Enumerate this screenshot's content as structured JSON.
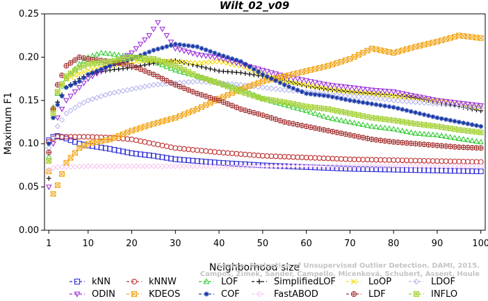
{
  "chart_data": {
    "type": "scatter",
    "title": "Wilt_02_v09",
    "xlabel": "Neighborhood size",
    "ylabel": "Maximum F1",
    "xlim": [
      0,
      101
    ],
    "ylim": [
      0,
      0.25
    ],
    "xticks": [
      1,
      10,
      20,
      30,
      40,
      50,
      60,
      70,
      80,
      90,
      100
    ],
    "yticks": [
      0.0,
      0.05,
      0.1,
      0.15,
      0.2,
      0.25
    ],
    "ytick_labels": [
      "0.00",
      "0.05",
      "0.10",
      "0.15",
      "0.20",
      "0.25"
    ],
    "legend_position": "bottom",
    "watermark": [
      "Source: Evaluation of Unsupervised Outlier Detection. DAMI, 2015.",
      "Campos, Zimek, Sander, Campello, Micenková, Schubert, Assent, Houle"
    ],
    "series": [
      {
        "name": "kNN",
        "color": "#2b2bd4",
        "marker": "square",
        "points": [
          [
            1,
            0.104
          ],
          [
            2,
            0.108
          ],
          [
            3,
            0.109
          ],
          [
            5,
            0.106
          ],
          [
            8,
            0.1
          ],
          [
            10,
            0.098
          ],
          [
            15,
            0.094
          ],
          [
            20,
            0.089
          ],
          [
            25,
            0.086
          ],
          [
            30,
            0.082
          ],
          [
            40,
            0.078
          ],
          [
            50,
            0.075
          ],
          [
            60,
            0.073
          ],
          [
            70,
            0.071
          ],
          [
            80,
            0.07
          ],
          [
            90,
            0.069
          ],
          [
            100,
            0.068
          ]
        ]
      },
      {
        "name": "kNNW",
        "color": "#c03030",
        "marker": "circle",
        "points": [
          [
            1,
            0.102
          ],
          [
            2,
            0.106
          ],
          [
            3,
            0.108
          ],
          [
            5,
            0.108
          ],
          [
            10,
            0.108
          ],
          [
            15,
            0.107
          ],
          [
            20,
            0.105
          ],
          [
            25,
            0.1
          ],
          [
            30,
            0.095
          ],
          [
            40,
            0.09
          ],
          [
            50,
            0.086
          ],
          [
            60,
            0.084
          ],
          [
            70,
            0.082
          ],
          [
            80,
            0.081
          ],
          [
            90,
            0.08
          ],
          [
            100,
            0.079
          ]
        ]
      },
      {
        "name": "LOF",
        "color": "#33cc33",
        "marker": "triangle-up",
        "points": [
          [
            1,
            0.085
          ],
          [
            2,
            0.142
          ],
          [
            3,
            0.158
          ],
          [
            5,
            0.175
          ],
          [
            8,
            0.192
          ],
          [
            10,
            0.2
          ],
          [
            13,
            0.205
          ],
          [
            15,
            0.204
          ],
          [
            20,
            0.2
          ],
          [
            25,
            0.195
          ],
          [
            30,
            0.185
          ],
          [
            35,
            0.178
          ],
          [
            40,
            0.17
          ],
          [
            45,
            0.163
          ],
          [
            50,
            0.152
          ],
          [
            55,
            0.145
          ],
          [
            60,
            0.138
          ],
          [
            65,
            0.13
          ],
          [
            70,
            0.125
          ],
          [
            75,
            0.12
          ],
          [
            80,
            0.117
          ],
          [
            85,
            0.112
          ],
          [
            90,
            0.11
          ],
          [
            95,
            0.106
          ],
          [
            100,
            0.102
          ]
        ]
      },
      {
        "name": "SimplifiedLOF",
        "color": "#111111",
        "marker": "plus",
        "points": [
          [
            1,
            0.06
          ],
          [
            2,
            0.13
          ],
          [
            3,
            0.148
          ],
          [
            5,
            0.165
          ],
          [
            8,
            0.175
          ],
          [
            10,
            0.18
          ],
          [
            15,
            0.185
          ],
          [
            20,
            0.188
          ],
          [
            25,
            0.193
          ],
          [
            30,
            0.196
          ],
          [
            35,
            0.19
          ],
          [
            40,
            0.184
          ],
          [
            45,
            0.182
          ],
          [
            50,
            0.178
          ],
          [
            55,
            0.173
          ],
          [
            60,
            0.167
          ],
          [
            65,
            0.163
          ],
          [
            70,
            0.16
          ],
          [
            75,
            0.158
          ],
          [
            80,
            0.156
          ],
          [
            85,
            0.153
          ],
          [
            90,
            0.148
          ],
          [
            95,
            0.143
          ],
          [
            100,
            0.138
          ]
        ]
      },
      {
        "name": "LoOP",
        "color": "#f2df1d",
        "marker": "cross",
        "points": [
          [
            1,
            0.08
          ],
          [
            2,
            0.14
          ],
          [
            3,
            0.16
          ],
          [
            5,
            0.175
          ],
          [
            10,
            0.185
          ],
          [
            15,
            0.19
          ],
          [
            20,
            0.195
          ],
          [
            25,
            0.196
          ],
          [
            30,
            0.195
          ],
          [
            35,
            0.193
          ],
          [
            40,
            0.195
          ],
          [
            45,
            0.19
          ],
          [
            50,
            0.18
          ],
          [
            55,
            0.172
          ],
          [
            60,
            0.168
          ],
          [
            65,
            0.163
          ],
          [
            70,
            0.16
          ],
          [
            75,
            0.158
          ],
          [
            80,
            0.155
          ],
          [
            85,
            0.153
          ],
          [
            90,
            0.15
          ],
          [
            95,
            0.146
          ],
          [
            100,
            0.142
          ]
        ]
      },
      {
        "name": "LDOF",
        "color": "#b8b8ee",
        "marker": "diamond",
        "points": [
          [
            1,
            0.095
          ],
          [
            3,
            0.12
          ],
          [
            5,
            0.135
          ],
          [
            8,
            0.145
          ],
          [
            10,
            0.15
          ],
          [
            15,
            0.158
          ],
          [
            20,
            0.163
          ],
          [
            25,
            0.168
          ],
          [
            30,
            0.17
          ],
          [
            35,
            0.172
          ],
          [
            40,
            0.17
          ],
          [
            45,
            0.168
          ],
          [
            50,
            0.165
          ],
          [
            55,
            0.162
          ],
          [
            60,
            0.16
          ],
          [
            65,
            0.157
          ],
          [
            70,
            0.155
          ],
          [
            75,
            0.153
          ],
          [
            80,
            0.15
          ],
          [
            85,
            0.148
          ],
          [
            90,
            0.146
          ],
          [
            95,
            0.144
          ],
          [
            100,
            0.142
          ]
        ]
      },
      {
        "name": "ODIN",
        "color": "#9a2bd8",
        "marker": "triangle-down",
        "points": [
          [
            1,
            0.05
          ],
          [
            2,
            0.1
          ],
          [
            3,
            0.13
          ],
          [
            5,
            0.15
          ],
          [
            8,
            0.165
          ],
          [
            10,
            0.175
          ],
          [
            15,
            0.19
          ],
          [
            20,
            0.205
          ],
          [
            24,
            0.225
          ],
          [
            26,
            0.24
          ],
          [
            28,
            0.225
          ],
          [
            30,
            0.21
          ],
          [
            35,
            0.203
          ],
          [
            40,
            0.199
          ],
          [
            45,
            0.192
          ],
          [
            50,
            0.185
          ],
          [
            55,
            0.178
          ],
          [
            60,
            0.173
          ],
          [
            65,
            0.168
          ],
          [
            70,
            0.165
          ],
          [
            75,
            0.162
          ],
          [
            80,
            0.16
          ],
          [
            85,
            0.155
          ],
          [
            90,
            0.15
          ],
          [
            95,
            0.147
          ],
          [
            100,
            0.144
          ]
        ]
      },
      {
        "name": "KDEOS",
        "color": "#f2a516",
        "marker": "square-x",
        "points": [
          [
            1,
            0.068
          ],
          [
            2,
            0.042
          ],
          [
            3,
            0.052
          ],
          [
            5,
            0.078
          ],
          [
            8,
            0.095
          ],
          [
            10,
            0.1
          ],
          [
            15,
            0.105
          ],
          [
            20,
            0.115
          ],
          [
            25,
            0.123
          ],
          [
            30,
            0.13
          ],
          [
            35,
            0.14
          ],
          [
            40,
            0.152
          ],
          [
            45,
            0.163
          ],
          [
            50,
            0.172
          ],
          [
            55,
            0.178
          ],
          [
            60,
            0.184
          ],
          [
            65,
            0.19
          ],
          [
            70,
            0.198
          ],
          [
            75,
            0.21
          ],
          [
            80,
            0.205
          ],
          [
            85,
            0.212
          ],
          [
            90,
            0.218
          ],
          [
            95,
            0.225
          ],
          [
            100,
            0.222
          ]
        ]
      },
      {
        "name": "COF",
        "color": "#1a3aa8",
        "marker": "asterisk",
        "points": [
          [
            1,
            0.1
          ],
          [
            2,
            0.13
          ],
          [
            3,
            0.145
          ],
          [
            5,
            0.165
          ],
          [
            8,
            0.172
          ],
          [
            10,
            0.18
          ],
          [
            15,
            0.19
          ],
          [
            20,
            0.198
          ],
          [
            25,
            0.208
          ],
          [
            30,
            0.215
          ],
          [
            35,
            0.212
          ],
          [
            40,
            0.203
          ],
          [
            45,
            0.195
          ],
          [
            50,
            0.18
          ],
          [
            55,
            0.168
          ],
          [
            60,
            0.158
          ],
          [
            65,
            0.155
          ],
          [
            70,
            0.15
          ],
          [
            75,
            0.146
          ],
          [
            80,
            0.142
          ],
          [
            85,
            0.136
          ],
          [
            90,
            0.13
          ],
          [
            95,
            0.125
          ],
          [
            100,
            0.12
          ]
        ]
      },
      {
        "name": "FastABOD",
        "color": "#f6c8f0",
        "marker": "diamond",
        "points": [
          [
            1,
            0.07
          ],
          [
            2,
            0.072
          ],
          [
            3,
            0.073
          ],
          [
            5,
            0.073
          ],
          [
            10,
            0.074
          ],
          [
            20,
            0.074
          ],
          [
            30,
            0.074
          ],
          [
            40,
            0.074
          ],
          [
            50,
            0.074
          ],
          [
            60,
            0.074
          ],
          [
            70,
            0.074
          ],
          [
            80,
            0.074
          ],
          [
            90,
            0.074
          ],
          [
            100,
            0.074
          ]
        ]
      },
      {
        "name": "LDF",
        "color": "#a33030",
        "marker": "circle-plus",
        "points": [
          [
            1,
            0.09
          ],
          [
            2,
            0.14
          ],
          [
            3,
            0.168
          ],
          [
            5,
            0.19
          ],
          [
            8,
            0.2
          ],
          [
            10,
            0.198
          ],
          [
            15,
            0.195
          ],
          [
            20,
            0.19
          ],
          [
            25,
            0.18
          ],
          [
            30,
            0.168
          ],
          [
            35,
            0.158
          ],
          [
            40,
            0.15
          ],
          [
            45,
            0.14
          ],
          [
            50,
            0.133
          ],
          [
            55,
            0.125
          ],
          [
            60,
            0.12
          ],
          [
            65,
            0.115
          ],
          [
            70,
            0.11
          ],
          [
            75,
            0.105
          ],
          [
            80,
            0.102
          ],
          [
            85,
            0.1
          ],
          [
            90,
            0.098
          ],
          [
            95,
            0.096
          ],
          [
            100,
            0.095
          ]
        ]
      },
      {
        "name": "INFLO",
        "color": "#a6d23a",
        "marker": "square-star",
        "points": [
          [
            1,
            0.08
          ],
          [
            2,
            0.135
          ],
          [
            3,
            0.16
          ],
          [
            5,
            0.178
          ],
          [
            8,
            0.188
          ],
          [
            10,
            0.192
          ],
          [
            15,
            0.195
          ],
          [
            20,
            0.2
          ],
          [
            25,
            0.198
          ],
          [
            30,
            0.19
          ],
          [
            35,
            0.178
          ],
          [
            40,
            0.17
          ],
          [
            45,
            0.16
          ],
          [
            50,
            0.152
          ],
          [
            55,
            0.148
          ],
          [
            60,
            0.143
          ],
          [
            65,
            0.14
          ],
          [
            70,
            0.135
          ],
          [
            75,
            0.13
          ],
          [
            80,
            0.127
          ],
          [
            85,
            0.123
          ],
          [
            90,
            0.12
          ],
          [
            95,
            0.116
          ],
          [
            100,
            0.113
          ]
        ]
      }
    ]
  }
}
